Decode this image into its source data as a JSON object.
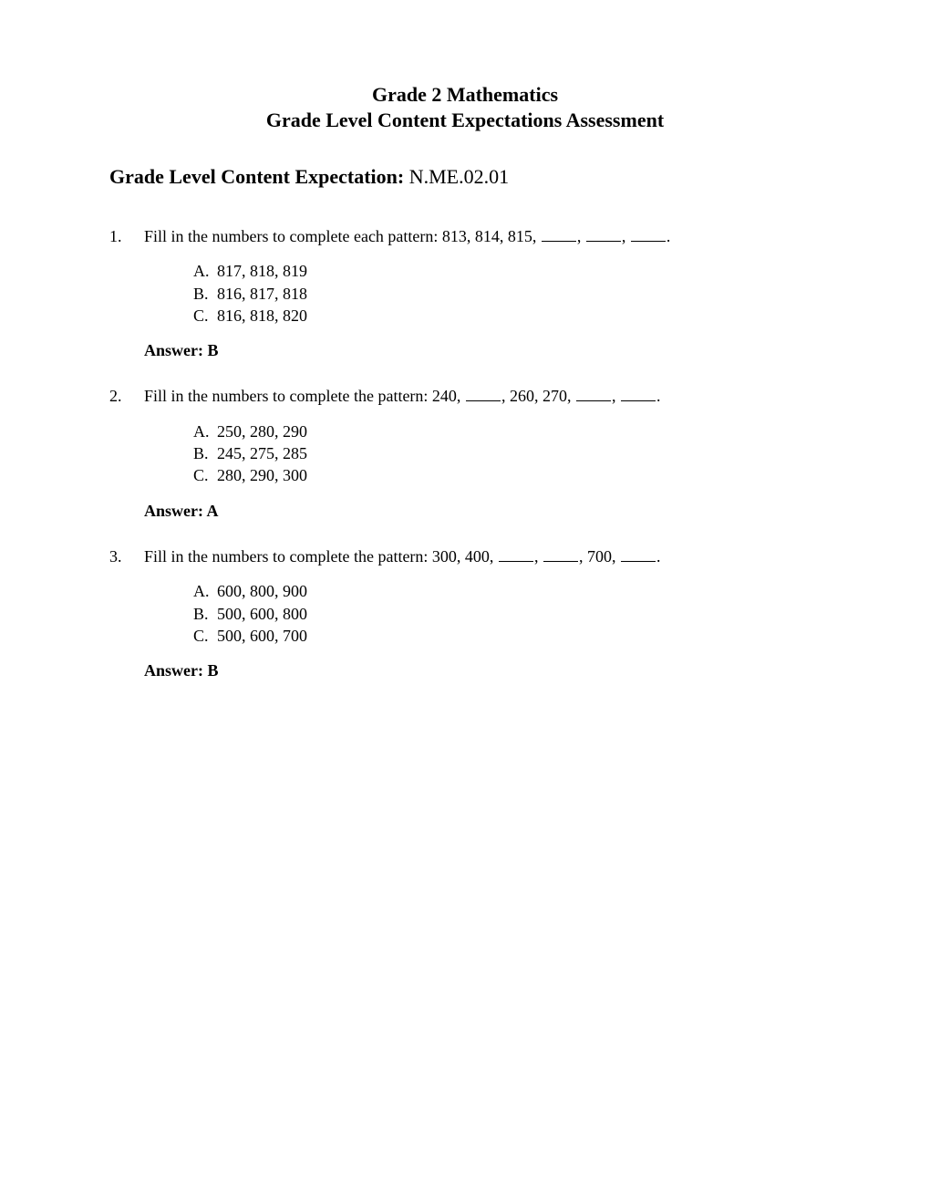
{
  "title_line1": "Grade 2 Mathematics",
  "title_line2": "Grade Level Content Expectations Assessment",
  "subtitle_label": "Grade Level Content Expectation:",
  "subtitle_value": "N.ME.02.01",
  "questions": [
    {
      "number": "1.",
      "stem_prefix": "Fill in the numbers to complete each pattern:  813, 814, 815, ",
      "blanks": 3,
      "stem_suffix": ".",
      "choices": [
        {
          "letter": "A.",
          "text": "817, 818, 819"
        },
        {
          "letter": "B.",
          "text": "816, 817, 818"
        },
        {
          "letter": "C.",
          "text": "816, 818, 820"
        }
      ],
      "answer": "Answer: B"
    },
    {
      "number": "2.",
      "stem_parts": [
        {
          "text": "Fill in the numbers to complete the pattern:  240, "
        },
        {
          "blank": true
        },
        {
          "text": ", 260, 270, "
        },
        {
          "blank": true
        },
        {
          "text": ", "
        },
        {
          "blank": true
        },
        {
          "text": "."
        }
      ],
      "choices": [
        {
          "letter": "A.",
          "text": "250, 280, 290"
        },
        {
          "letter": "B.",
          "text": "245, 275, 285"
        },
        {
          "letter": "C.",
          "text": "280, 290, 300"
        }
      ],
      "answer": "Answer: A"
    },
    {
      "number": "3.",
      "stem_parts": [
        {
          "text": "Fill in the numbers to complete the pattern:  300, 400, "
        },
        {
          "blank": true
        },
        {
          "text": ", "
        },
        {
          "blank": true
        },
        {
          "text": ", 700, "
        },
        {
          "blank": true
        },
        {
          "text": "."
        }
      ],
      "choices": [
        {
          "letter": "A.",
          "text": "600, 800, 900"
        },
        {
          "letter": "B.",
          "text": "500, 600, 800"
        },
        {
          "letter": "C.",
          "text": "500, 600, 700"
        }
      ],
      "answer": "Answer: B"
    }
  ]
}
